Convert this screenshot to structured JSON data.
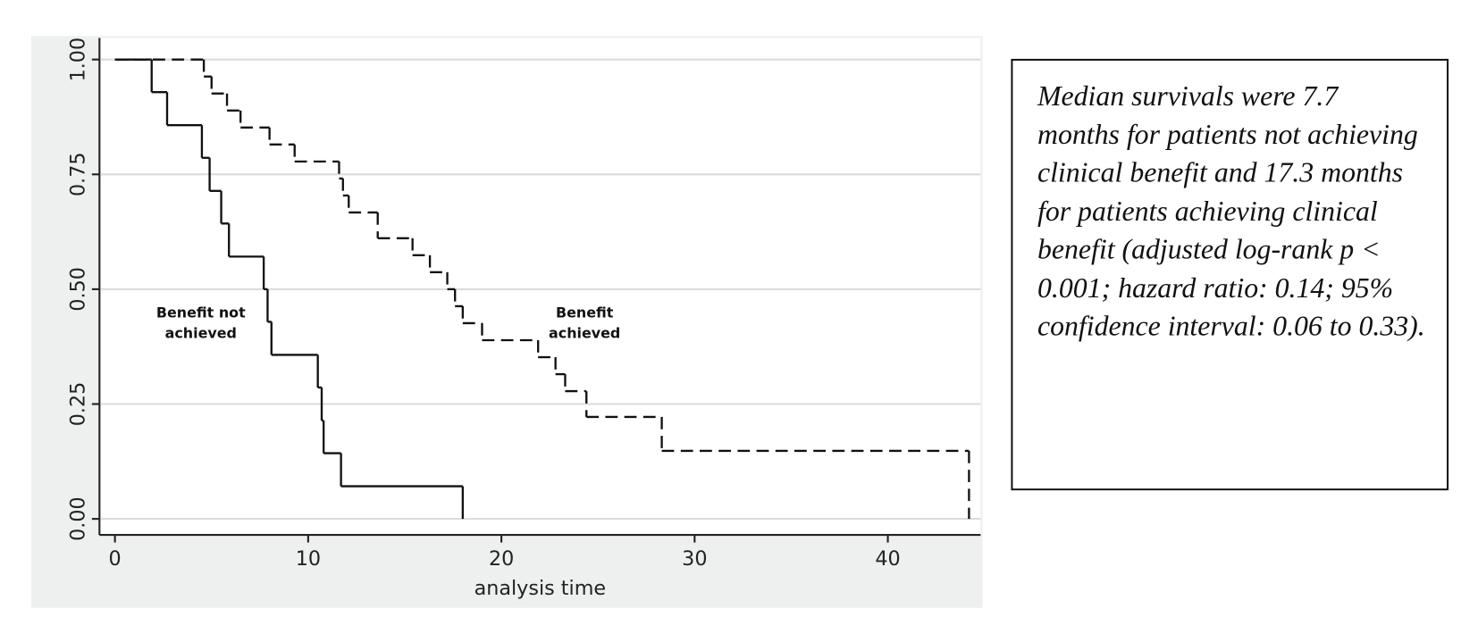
{
  "chart_data": {
    "type": "line",
    "step": "post",
    "xlabel": "analysis time",
    "xlim": [
      -0.8,
      44.8
    ],
    "ylim": [
      -0.035,
      1.047
    ],
    "xticks": [
      0,
      10,
      20,
      30,
      40
    ],
    "yticks": [
      {
        "value": 0,
        "label": "0.00"
      },
      {
        "value": 0.25,
        "label": "0.25"
      },
      {
        "value": 0.5,
        "label": "0.50"
      },
      {
        "value": 0.75,
        "label": "0.75"
      },
      {
        "value": 1,
        "label": "1.00"
      }
    ],
    "grid": true,
    "series": [
      {
        "name": "Benefit not achieved",
        "color": "#111111",
        "line_style": "solid",
        "x": [
          0,
          1.9,
          2.7,
          4.5,
          4.9,
          5.5,
          5.9,
          7.7,
          7.9,
          8.1,
          10.5,
          10.7,
          10.8,
          11.7,
          18.0
        ],
        "values": [
          1,
          0.929,
          0.857,
          0.786,
          0.714,
          0.643,
          0.571,
          0.5,
          0.429,
          0.357,
          0.286,
          0.214,
          0.143,
          0.071,
          0
        ]
      },
      {
        "name": "Benefit achieved",
        "color": "#111111",
        "line_style": "dashed",
        "x": [
          0,
          4.6,
          5.0,
          5.8,
          6.5,
          8.0,
          9.3,
          11.6,
          11.8,
          12.1,
          13.6,
          15.4,
          16.3,
          17.2,
          17.6,
          18.0,
          19.0,
          21.9,
          22.8,
          23.3,
          24.4,
          28.3,
          44.2
        ],
        "values": [
          1,
          0.963,
          0.926,
          0.889,
          0.852,
          0.815,
          0.778,
          0.741,
          0.704,
          0.667,
          0.611,
          0.574,
          0.537,
          0.5,
          0.463,
          0.426,
          0.389,
          0.352,
          0.315,
          0.278,
          0.222,
          0.148,
          0
        ]
      }
    ],
    "annotation": "Median survivals were 7.7 months for patients not achieving clinical benefit and 17.3 months for patients achieving clinical benefit (adjusted log-rank p < 0.001; hazard ratio: 0.14; 95% confidence interval: 0.06 to 0.33)."
  }
}
